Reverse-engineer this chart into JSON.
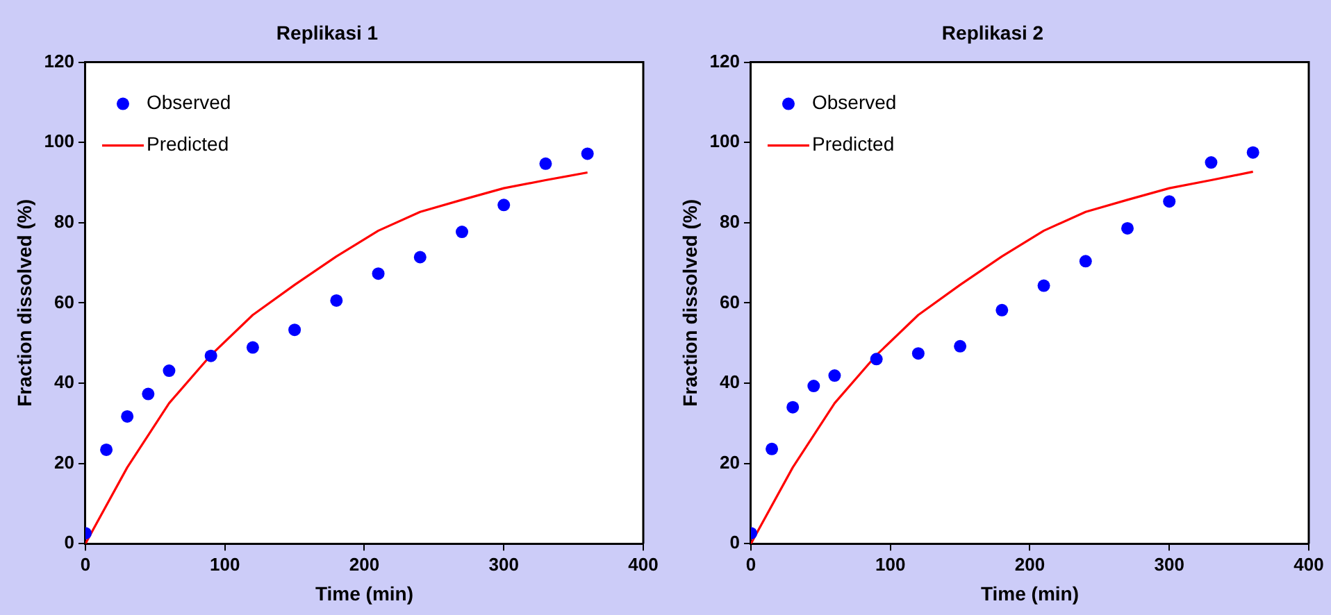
{
  "chart_data": [
    {
      "type": "scatter",
      "title": "Replikasi 1",
      "xlabel": "Time (min)",
      "ylabel": "Fraction dissolved (%)",
      "xlim": [
        0,
        400
      ],
      "xticks": [
        0,
        100,
        200,
        300,
        400
      ],
      "ylim": [
        0,
        120
      ],
      "yticks": [
        0,
        20,
        40,
        60,
        80,
        100,
        120
      ],
      "grid": false,
      "legend": "top left",
      "series": [
        {
          "name": "Observed",
          "type": "scatter",
          "marker": "circle",
          "color": "#0000ff",
          "x": [
            0,
            15,
            30,
            45,
            60,
            90,
            120,
            150,
            180,
            210,
            240,
            270,
            300,
            330,
            360
          ],
          "values": [
            2.6,
            23.4,
            31.7,
            37.3,
            43.1,
            46.8,
            48.9,
            53.3,
            60.6,
            67.3,
            71.4,
            77.7,
            84.4,
            94.7,
            97.2
          ]
        },
        {
          "name": "Predicted",
          "type": "line",
          "marker": "none",
          "line_style": "solid",
          "color": "#ff0000",
          "x": [
            0,
            30,
            60,
            90,
            120,
            150,
            180,
            210,
            240,
            270,
            300,
            330,
            360
          ],
          "values": [
            0,
            19,
            35,
            47,
            57,
            64.5,
            71.6,
            78,
            82.7,
            85.7,
            88.6,
            90.6,
            92.5
          ]
        }
      ]
    },
    {
      "type": "scatter",
      "title": "Replikasi 2",
      "xlabel": "Time (min)",
      "ylabel": "Fraction dissolved (%)",
      "xlim": [
        0,
        400
      ],
      "xticks": [
        0,
        100,
        200,
        300,
        400
      ],
      "ylim": [
        0,
        120
      ],
      "yticks": [
        0,
        20,
        40,
        60,
        80,
        100,
        120
      ],
      "grid": false,
      "legend": "top left",
      "series": [
        {
          "name": "Observed",
          "type": "scatter",
          "marker": "circle",
          "color": "#0000ff",
          "x": [
            0,
            15,
            30,
            45,
            60,
            90,
            120,
            150,
            180,
            210,
            240,
            270,
            300,
            330,
            360
          ],
          "values": [
            2.6,
            23.6,
            34,
            39.3,
            41.9,
            46,
            47.4,
            49.2,
            58.2,
            64.3,
            70.4,
            78.6,
            85.3,
            95,
            97.5
          ]
        },
        {
          "name": "Predicted",
          "type": "line",
          "marker": "none",
          "line_style": "solid",
          "color": "#ff0000",
          "x": [
            0,
            30,
            60,
            90,
            120,
            150,
            180,
            210,
            240,
            270,
            300,
            330,
            360
          ],
          "values": [
            0,
            19,
            35,
            47,
            57,
            64.5,
            71.6,
            78,
            82.7,
            85.7,
            88.6,
            90.6,
            92.7
          ]
        }
      ]
    }
  ]
}
